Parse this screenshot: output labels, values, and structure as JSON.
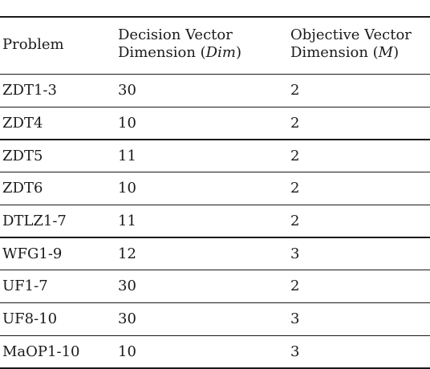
{
  "table": {
    "headers": [
      {
        "line1": "Problem",
        "line2": ""
      },
      {
        "line1": "Decision Vector",
        "line2_prefix": "Dimension (",
        "line2_math": "Dim",
        "line2_suffix": ")"
      },
      {
        "line1": "Objective Vector",
        "line2_prefix": "Dimension (",
        "line2_math": "M",
        "line2_suffix": ")"
      }
    ],
    "rows": [
      {
        "problem": "ZDT1-3",
        "dim": "30",
        "m": "2"
      },
      {
        "problem": "ZDT4",
        "dim": "10",
        "m": "2"
      },
      {
        "problem": "ZDT5",
        "dim": "11",
        "m": "2"
      },
      {
        "problem": "ZDT6",
        "dim": "10",
        "m": "2"
      },
      {
        "problem": "DTLZ1-7",
        "dim": "11",
        "m": "2"
      },
      {
        "problem": "WFG1-9",
        "dim": "12",
        "m": "3"
      },
      {
        "problem": "UF1-7",
        "dim": "30",
        "m": "2"
      },
      {
        "problem": "UF8-10",
        "dim": "30",
        "m": "3"
      },
      {
        "problem": "MaOP1-10",
        "dim": "10",
        "m": "3"
      }
    ]
  }
}
